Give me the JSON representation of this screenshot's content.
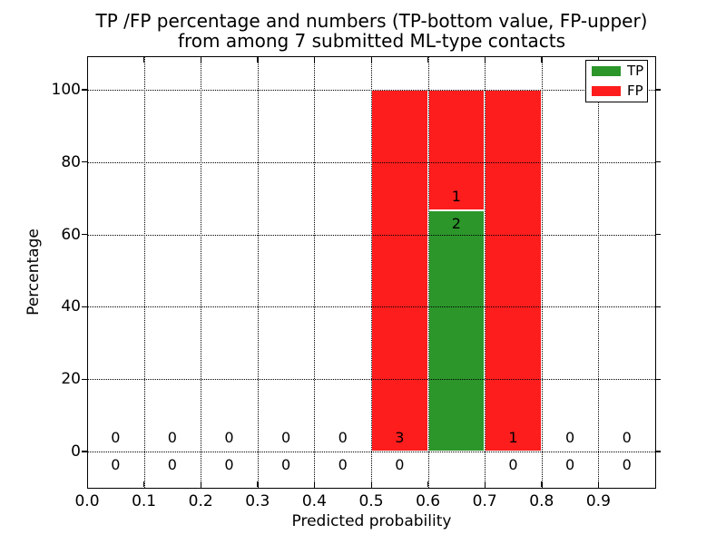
{
  "title": {
    "line1": "TP /FP percentage and numbers (TP-bottom value, FP-upper)",
    "line2": "from among 7 submitted ML-type contacts"
  },
  "chart_data": {
    "type": "bar",
    "stacked": true,
    "title": "TP /FP percentage and numbers (TP-bottom value, FP-upper)\nfrom among 7 submitted ML-type contacts",
    "xlabel": "Predicted probability",
    "ylabel": "Percentage",
    "xlim": [
      0.0,
      1.0
    ],
    "ylim": [
      -10,
      109.3
    ],
    "xtick_labels": [
      "0.0",
      "0.1",
      "0.2",
      "0.3",
      "0.4",
      "0.5",
      "0.6",
      "0.7",
      "0.8",
      "0.9"
    ],
    "xtick_values": [
      0.0,
      0.1,
      0.2,
      0.3,
      0.4,
      0.5,
      0.6,
      0.7,
      0.8,
      0.9
    ],
    "ytick_labels": [
      "0",
      "20",
      "40",
      "60",
      "80",
      "100"
    ],
    "ytick_values": [
      0,
      20,
      40,
      60,
      80,
      100
    ],
    "grid": true,
    "grid_style": "dotted",
    "legend_position": "upper right",
    "legend": [
      {
        "label": "TP",
        "color": "#2c962b"
      },
      {
        "label": "FP",
        "color": "#fd1d1d"
      }
    ],
    "series_note": "FP count label drawn just above top of TP segment, TP count label just below it",
    "bins": [
      {
        "range": [
          0.0,
          0.1
        ],
        "tp_pct": 0,
        "fp_pct": 0,
        "tp_count": 0,
        "fp_count": 0
      },
      {
        "range": [
          0.1,
          0.2
        ],
        "tp_pct": 0,
        "fp_pct": 0,
        "tp_count": 0,
        "fp_count": 0
      },
      {
        "range": [
          0.2,
          0.3
        ],
        "tp_pct": 0,
        "fp_pct": 0,
        "tp_count": 0,
        "fp_count": 0
      },
      {
        "range": [
          0.3,
          0.4
        ],
        "tp_pct": 0,
        "fp_pct": 0,
        "tp_count": 0,
        "fp_count": 0
      },
      {
        "range": [
          0.4,
          0.5
        ],
        "tp_pct": 0,
        "fp_pct": 0,
        "tp_count": 0,
        "fp_count": 0
      },
      {
        "range": [
          0.5,
          0.6
        ],
        "tp_pct": 0,
        "fp_pct": 100,
        "tp_count": 0,
        "fp_count": 3
      },
      {
        "range": [
          0.6,
          0.7
        ],
        "tp_pct": 66.667,
        "fp_pct": 33.333,
        "tp_count": 2,
        "fp_count": 1
      },
      {
        "range": [
          0.7,
          0.8
        ],
        "tp_pct": 0,
        "fp_pct": 100,
        "tp_count": 0,
        "fp_count": 1
      },
      {
        "range": [
          0.8,
          0.9
        ],
        "tp_pct": 0,
        "fp_pct": 0,
        "tp_count": 0,
        "fp_count": 0
      },
      {
        "range": [
          0.9,
          1.0
        ],
        "tp_pct": 0,
        "fp_pct": 0,
        "tp_count": 0,
        "fp_count": 0
      }
    ]
  },
  "colors": {
    "tp": "#2c962b",
    "fp": "#fd1d1d",
    "text": "#000000",
    "background": "#ffffff",
    "bar_edge": "#ffffff",
    "grid": "#000000"
  }
}
